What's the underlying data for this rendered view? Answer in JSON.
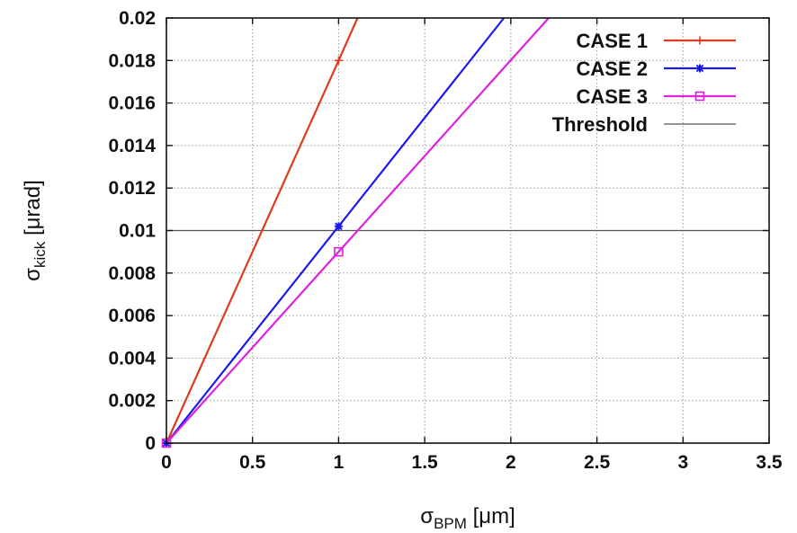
{
  "chart_data": {
    "type": "line",
    "title": "",
    "xlabel": {
      "symbol": "σ",
      "subscript": "BPM",
      "unit": " [μm]"
    },
    "ylabel": {
      "symbol": "σ",
      "subscript": "kick",
      "unit": " [μrad]"
    },
    "xlim": [
      0,
      3.5
    ],
    "ylim": [
      0,
      0.02
    ],
    "xticks": [
      0,
      0.5,
      1,
      1.5,
      2,
      2.5,
      3,
      3.5
    ],
    "xtick_labels": [
      "0",
      "0.5",
      "1",
      "1.5",
      "2",
      "2.5",
      "3",
      "3.5"
    ],
    "yticks": [
      0,
      0.002,
      0.004,
      0.006,
      0.008,
      0.01,
      0.012,
      0.014,
      0.016,
      0.018,
      0.02
    ],
    "ytick_labels": [
      "0",
      "0.002",
      "0.004",
      "0.006",
      "0.008",
      "0.01",
      "0.012",
      "0.014",
      "0.016",
      "0.018",
      "0.02"
    ],
    "grid": true,
    "legend_position": "top-right",
    "series": [
      {
        "name": "CASE 1",
        "color": "#dd3b1f",
        "marker": "plus",
        "x": [
          0,
          1,
          1.11
        ],
        "y": [
          0,
          0.018,
          0.02
        ]
      },
      {
        "name": "CASE 2",
        "color": "#1a1aee",
        "marker": "star",
        "x": [
          0,
          1,
          1.96
        ],
        "y": [
          0,
          0.0102,
          0.02
        ]
      },
      {
        "name": "CASE 3",
        "color": "#dd22dd",
        "marker": "square",
        "x": [
          0,
          1,
          2.22
        ],
        "y": [
          0,
          0.009,
          0.02
        ]
      },
      {
        "name": "Threshold",
        "color": "#555555",
        "marker": "none",
        "x": [
          0,
          3.5
        ],
        "y": [
          0.01,
          0.01
        ]
      }
    ]
  }
}
